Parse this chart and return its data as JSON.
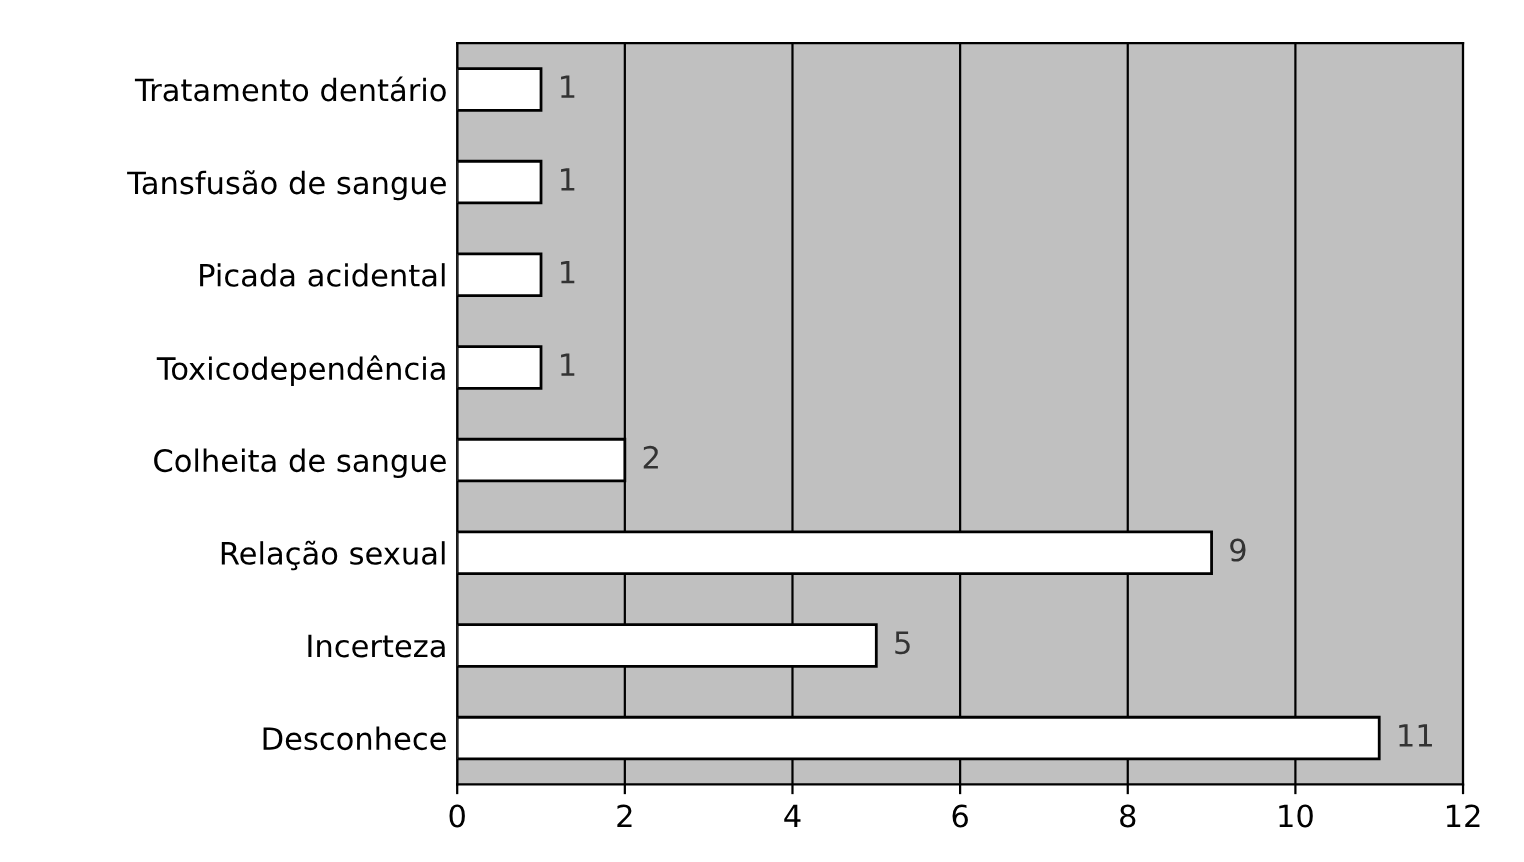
{
  "chart_data": {
    "type": "bar",
    "orientation": "horizontal",
    "categories": [
      "Tratamento dentário",
      "Tansfusão de sangue",
      "Picada acidental",
      "Toxicodependência",
      "Colheita de sangue",
      "Relação sexual",
      "Incerteza",
      "Desconhece"
    ],
    "values": [
      1,
      1,
      1,
      1,
      2,
      9,
      5,
      11
    ],
    "color": "#ffffff",
    "xlim": [
      0,
      12
    ],
    "xticks": [
      0,
      2,
      4,
      6,
      8,
      10,
      12
    ],
    "grid": "x",
    "data_labels": true
  }
}
